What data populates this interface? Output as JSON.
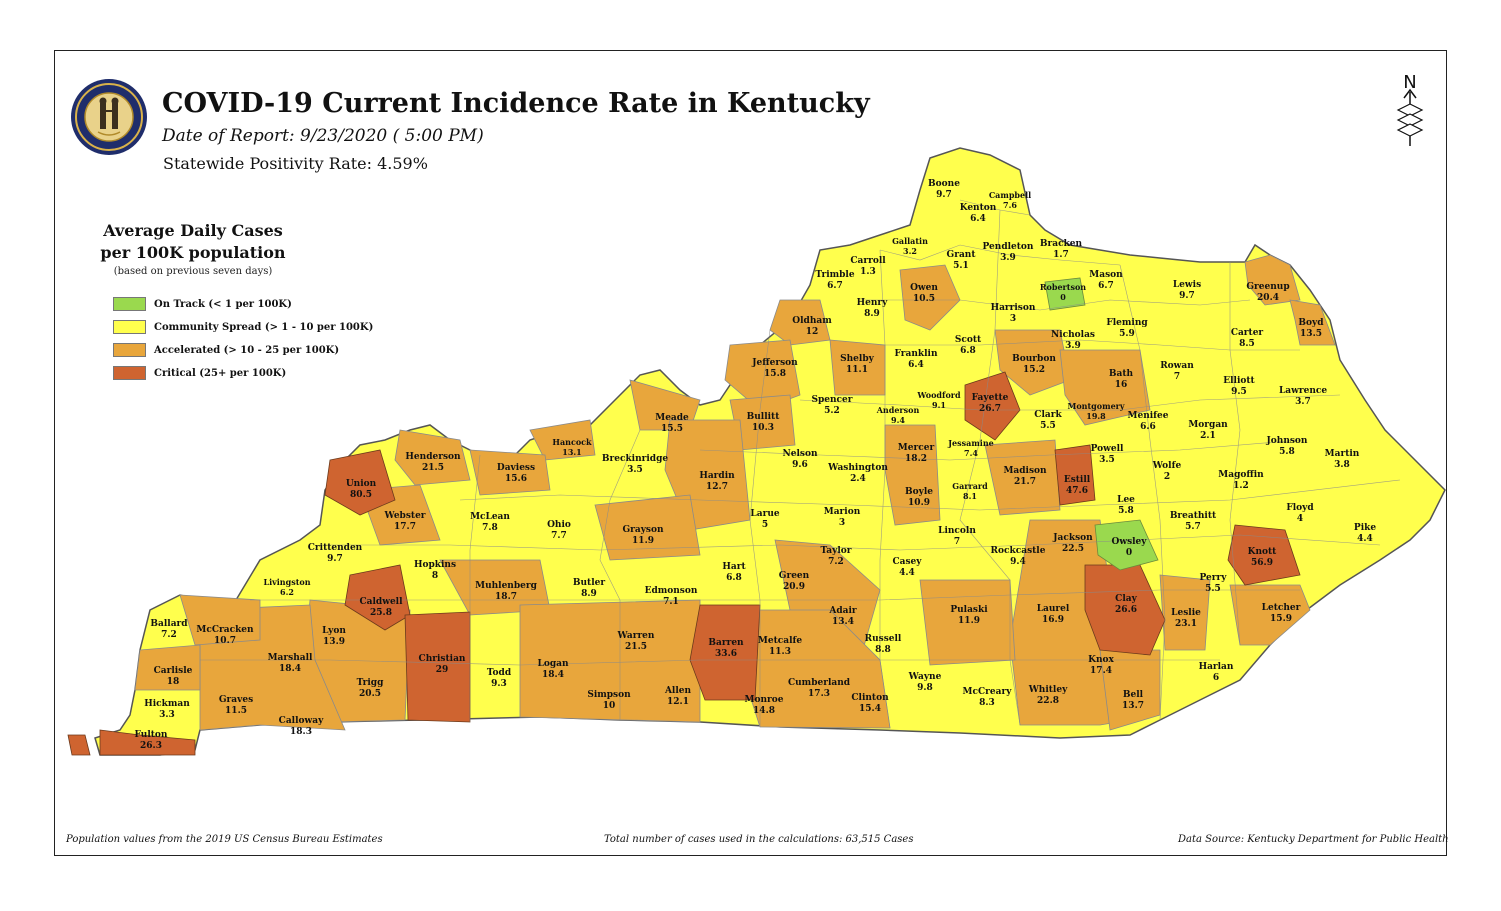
{
  "header": {
    "title": "COVID-19 Current Incidence Rate in Kentucky",
    "date_of_report": "Date of Report: 9/23/2020 ( 5:00 PM)",
    "positivity": "Statewide Positivity Rate: 4.59%"
  },
  "north_arrow_label": "N",
  "legend": {
    "title_line1": "Average Daily Cases",
    "title_line2": "per 100K population",
    "note": "(based on previous seven days)",
    "items": [
      {
        "label": "On Track (< 1 per 100K)",
        "color": "#9ad94e"
      },
      {
        "label": "Community Spread (> 1 - 10 per 100K)",
        "color": "#ffff4d"
      },
      {
        "label": "Accelerated (> 10 - 25 per 100K)",
        "color": "#e8a63c"
      },
      {
        "label": "Critical (25+ per 100K)",
        "color": "#cf6430"
      }
    ]
  },
  "footer": {
    "left": "Population values from the 2019 US Census Bureau Estimates",
    "center": "Total number of cases used in the calculations: 63,515 Cases",
    "right": "Data Source: Kentucky Department for Public Health"
  },
  "colors": {
    "on_track": "#9ad94e",
    "community": "#ffff4d",
    "accelerated": "#e8a63c",
    "critical": "#cf6430",
    "border": "#8a8a8a"
  },
  "counties": [
    {
      "name": "Boone",
      "value": "9.7"
    },
    {
      "name": "Kenton",
      "value": "6.4"
    },
    {
      "name": "Campbell",
      "value": "7.6"
    },
    {
      "name": "Gallatin",
      "value": "3.2"
    },
    {
      "name": "Grant",
      "value": "5.1"
    },
    {
      "name": "Pendleton",
      "value": "3.9"
    },
    {
      "name": "Bracken",
      "value": "1.7"
    },
    {
      "name": "Carroll",
      "value": "1.3"
    },
    {
      "name": "Trimble",
      "value": "6.7"
    },
    {
      "name": "Owen",
      "value": "10.5"
    },
    {
      "name": "Robertson",
      "value": "0"
    },
    {
      "name": "Mason",
      "value": "6.7"
    },
    {
      "name": "Lewis",
      "value": "9.7"
    },
    {
      "name": "Greenup",
      "value": "20.4"
    },
    {
      "name": "Henry",
      "value": "8.9"
    },
    {
      "name": "Harrison",
      "value": "3"
    },
    {
      "name": "Oldham",
      "value": "12"
    },
    {
      "name": "Fleming",
      "value": "5.9"
    },
    {
      "name": "Boyd",
      "value": "13.5"
    },
    {
      "name": "Carter",
      "value": "8.5"
    },
    {
      "name": "Scott",
      "value": "6.8"
    },
    {
      "name": "Nicholas",
      "value": "3.9"
    },
    {
      "name": "Jefferson",
      "value": "15.8"
    },
    {
      "name": "Shelby",
      "value": "11.1"
    },
    {
      "name": "Franklin",
      "value": "6.4"
    },
    {
      "name": "Bourbon",
      "value": "15.2"
    },
    {
      "name": "Rowan",
      "value": "7"
    },
    {
      "name": "Bath",
      "value": "16"
    },
    {
      "name": "Elliott",
      "value": "9.5"
    },
    {
      "name": "Lawrence",
      "value": "3.7"
    },
    {
      "name": "Woodford",
      "value": "9.1"
    },
    {
      "name": "Fayette",
      "value": "26.7"
    },
    {
      "name": "Spencer",
      "value": "5.2"
    },
    {
      "name": "Anderson",
      "value": "9.4"
    },
    {
      "name": "Montgomery",
      "value": "19.8"
    },
    {
      "name": "Menifee",
      "value": "6.6"
    },
    {
      "name": "Clark",
      "value": "5.5"
    },
    {
      "name": "Meade",
      "value": "15.5"
    },
    {
      "name": "Bullitt",
      "value": "10.3"
    },
    {
      "name": "Morgan",
      "value": "2.1"
    },
    {
      "name": "Hancock",
      "value": "13.1"
    },
    {
      "name": "Johnson",
      "value": "5.8"
    },
    {
      "name": "Martin",
      "value": "3.8"
    },
    {
      "name": "Jessamine",
      "value": "7.4"
    },
    {
      "name": "Mercer",
      "value": "18.2"
    },
    {
      "name": "Powell",
      "value": "3.5"
    },
    {
      "name": "Henderson",
      "value": "21.5"
    },
    {
      "name": "Daviess",
      "value": "15.6"
    },
    {
      "name": "Breckinridge",
      "value": "3.5"
    },
    {
      "name": "Nelson",
      "value": "9.6"
    },
    {
      "name": "Washington",
      "value": "2.4"
    },
    {
      "name": "Wolfe",
      "value": "2"
    },
    {
      "name": "Magoffin",
      "value": "1.2"
    },
    {
      "name": "Madison",
      "value": "21.7"
    },
    {
      "name": "Estill",
      "value": "47.6"
    },
    {
      "name": "Garrard",
      "value": "8.1"
    },
    {
      "name": "Hardin",
      "value": "12.7"
    },
    {
      "name": "Union",
      "value": "80.5"
    },
    {
      "name": "Boyle",
      "value": "10.9"
    },
    {
      "name": "Lee",
      "value": "5.8"
    },
    {
      "name": "Floyd",
      "value": "4"
    },
    {
      "name": "Webster",
      "value": "17.7"
    },
    {
      "name": "McLean",
      "value": "7.8"
    },
    {
      "name": "Ohio",
      "value": "7.7"
    },
    {
      "name": "Larue",
      "value": "5"
    },
    {
      "name": "Marion",
      "value": "3"
    },
    {
      "name": "Breathitt",
      "value": "5.7"
    },
    {
      "name": "Grayson",
      "value": "11.9"
    },
    {
      "name": "Lincoln",
      "value": "7"
    },
    {
      "name": "Pike",
      "value": "4.4"
    },
    {
      "name": "Jackson",
      "value": "22.5"
    },
    {
      "name": "Owsley",
      "value": "0"
    },
    {
      "name": "Knott",
      "value": "56.9"
    },
    {
      "name": "Crittenden",
      "value": "9.7"
    },
    {
      "name": "Taylor",
      "value": "7.2"
    },
    {
      "name": "Rockcastle",
      "value": "9.4"
    },
    {
      "name": "Hopkins",
      "value": "8"
    },
    {
      "name": "Casey",
      "value": "4.4"
    },
    {
      "name": "Hart",
      "value": "6.8"
    },
    {
      "name": "Livingston",
      "value": "6.2"
    },
    {
      "name": "Muhlenberg",
      "value": "18.7"
    },
    {
      "name": "Butler",
      "value": "8.9"
    },
    {
      "name": "Edmonson",
      "value": "7.1"
    },
    {
      "name": "Green",
      "value": "20.9"
    },
    {
      "name": "Perry",
      "value": "5.5"
    },
    {
      "name": "Caldwell",
      "value": "25.8"
    },
    {
      "name": "Clay",
      "value": "26.6"
    },
    {
      "name": "Ballard",
      "value": "7.2"
    },
    {
      "name": "McCracken",
      "value": "10.7"
    },
    {
      "name": "Lyon",
      "value": "13.9"
    },
    {
      "name": "Pulaski",
      "value": "11.9"
    },
    {
      "name": "Laurel",
      "value": "16.9"
    },
    {
      "name": "Leslie",
      "value": "23.1"
    },
    {
      "name": "Letcher",
      "value": "15.9"
    },
    {
      "name": "Adair",
      "value": "13.4"
    },
    {
      "name": "Warren",
      "value": "21.5"
    },
    {
      "name": "Barren",
      "value": "33.6"
    },
    {
      "name": "Metcalfe",
      "value": "11.3"
    },
    {
      "name": "Marshall",
      "value": "18.4"
    },
    {
      "name": "Christian",
      "value": "29"
    },
    {
      "name": "Russell",
      "value": "8.8"
    },
    {
      "name": "Carlisle",
      "value": "18"
    },
    {
      "name": "Todd",
      "value": "9.3"
    },
    {
      "name": "Logan",
      "value": "18.4"
    },
    {
      "name": "Harlan",
      "value": "6"
    },
    {
      "name": "Knox",
      "value": "17.4"
    },
    {
      "name": "Trigg",
      "value": "20.5"
    },
    {
      "name": "Wayne",
      "value": "9.8"
    },
    {
      "name": "Cumberland",
      "value": "17.3"
    },
    {
      "name": "Graves",
      "value": "11.5"
    },
    {
      "name": "Whitley",
      "value": "22.8"
    },
    {
      "name": "Allen",
      "value": "12.1"
    },
    {
      "name": "Monroe",
      "value": "14.8"
    },
    {
      "name": "Simpson",
      "value": "10"
    },
    {
      "name": "Hickman",
      "value": "3.3"
    },
    {
      "name": "Bell",
      "value": "13.7"
    },
    {
      "name": "McCreary",
      "value": "8.3"
    },
    {
      "name": "Clinton",
      "value": "15.4"
    },
    {
      "name": "Calloway",
      "value": "18.3"
    },
    {
      "name": "Fulton",
      "value": "26.3"
    }
  ]
}
